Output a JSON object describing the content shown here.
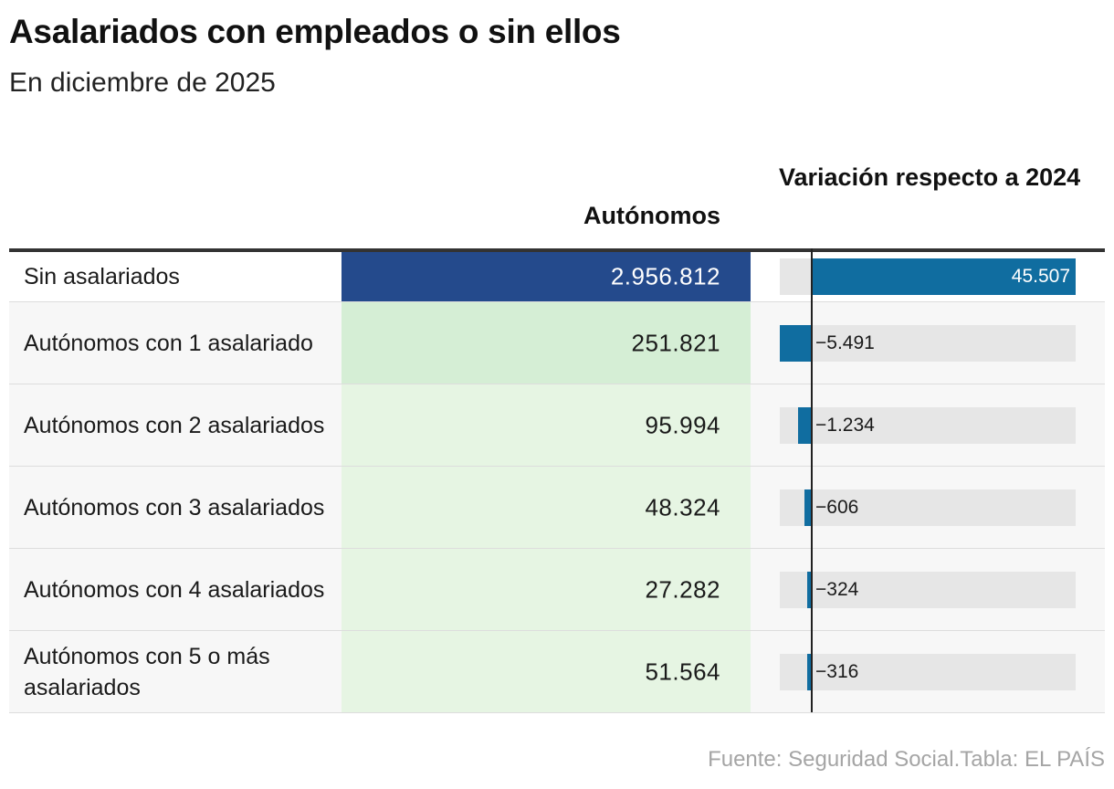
{
  "title": "Asalariados con empleados o sin ellos",
  "subtitle": "En diciembre de 2025",
  "source": "Fuente: Seguridad Social.Tabla: EL PAÍS",
  "chart_data": {
    "type": "table",
    "title": "Asalariados con empleados o sin ellos",
    "subtitle": "En diciembre de 2025",
    "columns": [
      "Autónomos",
      "Variación respecto a 2024"
    ],
    "rows": [
      {
        "label": "Sin asalariados",
        "autonomos": 2956812,
        "autonomos_label": "2.956.812",
        "variacion": 45507,
        "variacion_label": "45.507"
      },
      {
        "label": "Autónomos con 1 asalariado",
        "autonomos": 251821,
        "autonomos_label": "251.821",
        "variacion": -5491,
        "variacion_label": "−5.491"
      },
      {
        "label": "Autónomos con 2 asalariados",
        "autonomos": 95994,
        "autonomos_label": "95.994",
        "variacion": -1234,
        "variacion_label": "−1.234"
      },
      {
        "label": "Autónomos con 3 asalariados",
        "autonomos": 48324,
        "autonomos_label": "48.324",
        "variacion": -606,
        "variacion_label": "−606"
      },
      {
        "label": "Autónomos con 4 asalariados",
        "autonomos": 27282,
        "autonomos_label": "27.282",
        "variacion": -324,
        "variacion_label": "−324"
      },
      {
        "label": "Autónomos con 5 o más asalariados",
        "autonomos": 51564,
        "autonomos_label": "51.564",
        "variacion": -316,
        "variacion_label": "−316"
      }
    ],
    "heatmap_colors": [
      "#244a8c",
      "#d5eed5",
      "#e6f5e3",
      "#e6f5e3",
      "#e6f5e3",
      "#e6f5e3"
    ],
    "bar_color": "#106da0",
    "track_color": "#e6e6e6"
  }
}
